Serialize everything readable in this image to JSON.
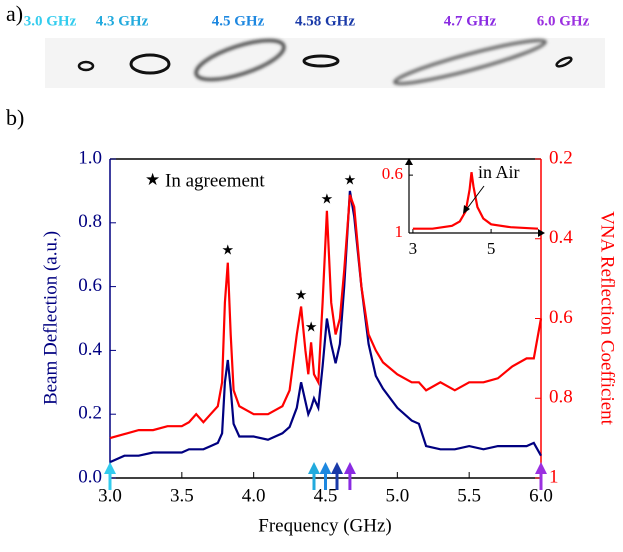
{
  "panel_a": {
    "label": "a)",
    "frequencies": [
      "3.0 GHz",
      "4.3 GHz",
      "4.5 GHz",
      "4.58 GHz",
      "4.7 GHz",
      "6.0 GHz"
    ],
    "colors": [
      "#33ccee",
      "#22aadd",
      "#1e88e0",
      "#1a3aa8",
      "#8a2be2",
      "#9b30e0"
    ]
  },
  "chart_data": [
    {
      "type": "line",
      "panel_label": "b)",
      "xlabel": "Frequency (GHz)",
      "ylabel": "Beam Deflection (a.u.)",
      "y2label": "VNA Reflection Coefficient",
      "x": [
        3.0,
        3.1,
        3.2,
        3.3,
        3.4,
        3.5,
        3.55,
        3.6,
        3.65,
        3.7,
        3.75,
        3.78,
        3.8,
        3.82,
        3.84,
        3.86,
        3.9,
        4.0,
        4.1,
        4.2,
        4.25,
        4.3,
        4.33,
        4.36,
        4.38,
        4.4,
        4.42,
        4.45,
        4.48,
        4.51,
        4.54,
        4.57,
        4.6,
        4.63,
        4.67,
        4.7,
        4.75,
        4.8,
        4.85,
        4.9,
        5.0,
        5.1,
        5.15,
        5.2,
        5.3,
        5.4,
        5.5,
        5.6,
        5.7,
        5.8,
        5.9,
        5.95,
        6.0
      ],
      "xlim": [
        3,
        6
      ],
      "xticks": [
        {
          "value": 3,
          "label": "3.0"
        },
        3.5,
        {
          "value": 4,
          "label": "4.0"
        },
        4.5,
        {
          "value": 5,
          "label": "5.0"
        },
        5.5,
        {
          "value": 6,
          "label": "6.0"
        }
      ],
      "ylim": [
        0,
        1
      ],
      "yticks": [
        {
          "value": 0,
          "label": "0.0"
        },
        0.2,
        0.4,
        0.6,
        0.8,
        {
          "value": 1,
          "label": "1.0"
        }
      ],
      "y2lim": [
        1,
        0.2
      ],
      "y2ticks": [
        0.2,
        0.4,
        0.6,
        0.8,
        1
      ],
      "series": [
        {
          "color": "#000080",
          "values": [
            0.05,
            0.07,
            0.07,
            0.08,
            0.08,
            0.08,
            0.09,
            0.09,
            0.09,
            0.1,
            0.11,
            0.14,
            0.3,
            0.37,
            0.28,
            0.17,
            0.13,
            0.13,
            0.12,
            0.14,
            0.16,
            0.22,
            0.3,
            0.24,
            0.2,
            0.22,
            0.25,
            0.22,
            0.35,
            0.5,
            0.42,
            0.36,
            0.42,
            0.6,
            0.9,
            0.82,
            0.6,
            0.42,
            0.32,
            0.28,
            0.22,
            0.18,
            0.17,
            0.1,
            0.09,
            0.09,
            0.1,
            0.09,
            0.1,
            0.1,
            0.1,
            0.11,
            0.07
          ]
        },
        {
          "color": "#ff0000",
          "axis": "y2",
          "values": [
            0.9,
            0.89,
            0.88,
            0.88,
            0.87,
            0.87,
            0.86,
            0.84,
            0.86,
            0.84,
            0.82,
            0.76,
            0.56,
            0.46,
            0.64,
            0.78,
            0.82,
            0.84,
            0.84,
            0.82,
            0.78,
            0.64,
            0.57,
            0.68,
            0.74,
            0.66,
            0.74,
            0.76,
            0.56,
            0.33,
            0.56,
            0.64,
            0.6,
            0.48,
            0.29,
            0.32,
            0.52,
            0.64,
            0.68,
            0.71,
            0.74,
            0.76,
            0.76,
            0.78,
            0.76,
            0.78,
            0.76,
            0.76,
            0.75,
            0.72,
            0.7,
            0.7,
            0.6
          ]
        }
      ],
      "annotation": "In agreement",
      "stars": {
        "x": [
          3.82,
          4.33,
          4.4,
          4.51,
          4.67
        ],
        "y": [
          0.71,
          0.57,
          0.47,
          0.87,
          0.93
        ]
      },
      "markers": {
        "x": [
          3.0,
          4.42,
          4.5,
          4.58,
          4.67,
          6.0
        ],
        "colors": [
          "#33ccee",
          "#22aadd",
          "#1e88e0",
          "#1a3aa8",
          "#8a2be2",
          "#9b30e0"
        ]
      }
    },
    {
      "type": "line",
      "x": [
        3,
        3.5,
        4,
        4.2,
        4.35,
        4.45,
        4.5,
        4.55,
        4.65,
        4.8,
        5,
        5.5,
        6.2
      ],
      "xlim": [
        2.9,
        6.2
      ],
      "xticks": [
        3,
        5
      ],
      "ylim": [
        1,
        0.53
      ],
      "yticks": [
        0.6,
        1
      ],
      "annotation": "in Air",
      "series": [
        {
          "color": "#ff0000",
          "values": [
            0.97,
            0.97,
            0.95,
            0.92,
            0.85,
            0.7,
            0.58,
            0.68,
            0.82,
            0.9,
            0.94,
            0.96,
            0.97
          ]
        }
      ]
    }
  ]
}
